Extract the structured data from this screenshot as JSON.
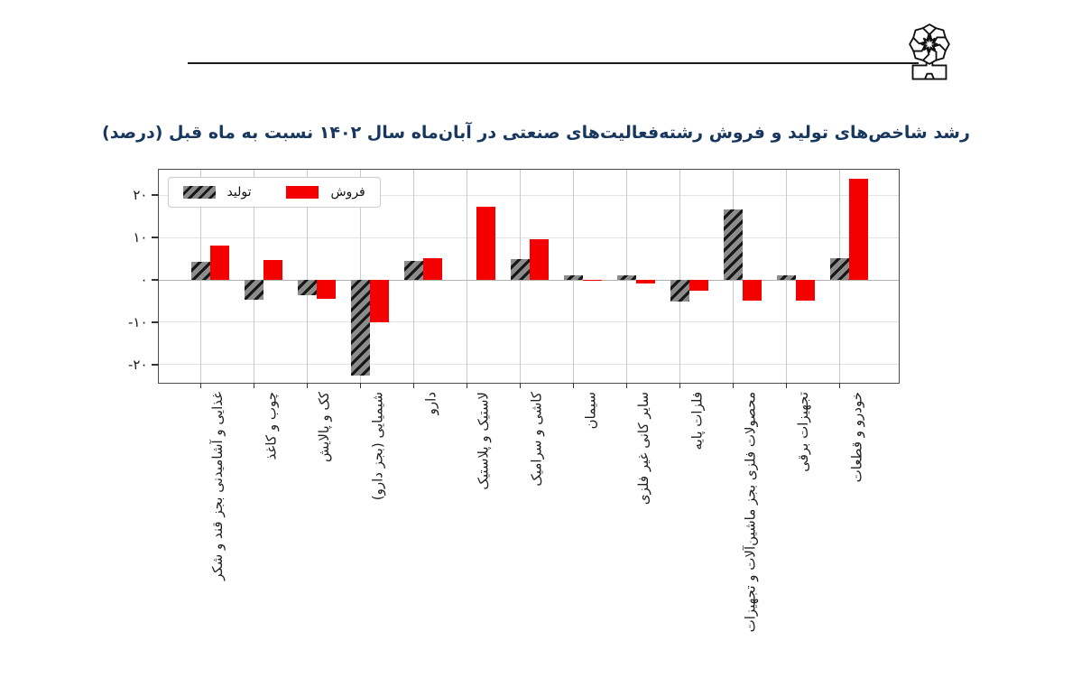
{
  "header": {
    "logo_icon": "geometric-rosette-logo"
  },
  "chart_data": {
    "type": "bar",
    "title": "رشد شاخص‌های تولید و فروش رشته‌فعالیت‌های صنعتی در آبان‌ماه سال ۱۴۰۲ نسبت به ماه قبل (درصد)",
    "categories": [
      "غذایی و آشامیدنی بجز قند و شکر",
      "چوب و کاغذ",
      "کک و پالایش",
      "شیمیایی (بجز دارو)",
      "دارو",
      "لاستیک و پلاستیک",
      "کاشی و سرامیک",
      "سیمان",
      "سایر کانی غیر فلزی",
      "فلزات پایه",
      "محصولات فلزی بجز ماشین‌آلات و تجهیزات",
      "تجهیزات برقی",
      "خودرو و قطعات"
    ],
    "series": [
      {
        "name": "تولید",
        "style": "gray-hatched",
        "fill": "#8c8c8c",
        "hatch": "/",
        "values": [
          4.2,
          -4.6,
          -3.7,
          -22.6,
          4.4,
          0,
          5.0,
          1.0,
          1.0,
          -5.2,
          16.7,
          1.0,
          5.2
        ]
      },
      {
        "name": "فروش",
        "style": "solid-red",
        "fill": "#f40000",
        "values": [
          8.1,
          4.6,
          -4.4,
          -10.0,
          5.1,
          17.2,
          9.5,
          -0.2,
          -0.8,
          -2.6,
          -5.0,
          -5.0,
          23.9
        ]
      }
    ],
    "yticks": [
      {
        "value": 20,
        "label": "۲۰"
      },
      {
        "value": 10,
        "label": "۱۰"
      },
      {
        "value": 0,
        "label": "۰"
      },
      {
        "value": -10,
        "label": "-۱۰"
      },
      {
        "value": -20,
        "label": "-۲۰"
      }
    ],
    "ylim": [
      -24,
      26
    ],
    "xlabel": "",
    "ylabel": "",
    "legend_position": "top-left",
    "grid": "vertical-category-lines-and-zero-line",
    "colors": {
      "title": "#17375e",
      "sales_bar": "#f40000",
      "production_bar": "#8c8c8c",
      "plot_border": "#4d4d4d",
      "gridline": "#c9c9c9"
    }
  }
}
